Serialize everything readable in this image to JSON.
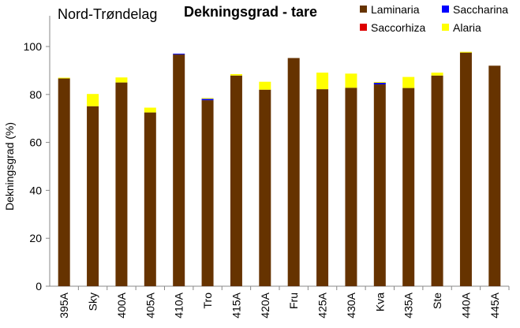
{
  "chart_data": {
    "type": "bar",
    "stacked": true,
    "title": "Dekningsgrad - tare",
    "subtitle": "Nord-Trøndelag",
    "xlabel": "",
    "ylabel": "Dekningsgrad  (%)",
    "ylim": [
      0,
      100
    ],
    "yticks": [
      0,
      20,
      40,
      60,
      80,
      100
    ],
    "grid": false,
    "legend_position": "top-right",
    "categories": [
      "395A",
      "Sky",
      "400A",
      "405A",
      "410A",
      "Tro",
      "415A",
      "420A",
      "Fru",
      "425A",
      "430A",
      "Kva",
      "435A",
      "Ste",
      "440A",
      "445A"
    ],
    "series": [
      {
        "name": "Laminaria",
        "color": "#663300",
        "values": [
          86.7,
          75.1,
          85.0,
          72.5,
          96.7,
          77.6,
          87.9,
          82.0,
          95.2,
          82.2,
          82.8,
          84.2,
          82.7,
          87.9,
          97.5,
          92.0
        ]
      },
      {
        "name": "Saccharina",
        "color": "#0000ff",
        "values": [
          0,
          0,
          0,
          0,
          0.3,
          0.6,
          0,
          0,
          0,
          0,
          0,
          0.7,
          0,
          0,
          0,
          0
        ]
      },
      {
        "name": "Saccorhiza",
        "color": "#dd0000",
        "values": [
          0,
          0,
          0,
          0,
          0,
          0,
          0,
          0,
          0,
          0,
          0,
          0,
          0,
          0,
          0,
          0
        ]
      },
      {
        "name": "Alaria",
        "color": "#ffff00",
        "values": [
          0.3,
          5.1,
          2.1,
          2.0,
          0,
          0.3,
          0.6,
          3.3,
          0,
          6.9,
          5.9,
          0.3,
          4.6,
          1.2,
          0.3,
          0
        ]
      }
    ]
  }
}
